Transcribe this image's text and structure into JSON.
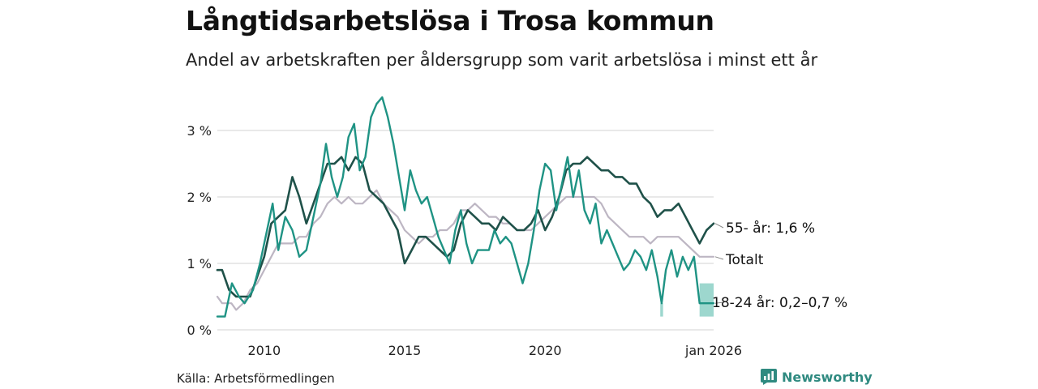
{
  "header": {
    "title": "Långtidsarbetslösa i Trosa kommun",
    "subtitle": "Andel av arbetskraften per åldersgrupp som varit arbetslösa i minst ett år"
  },
  "footer": {
    "source": "Källa: Arbetsförmedlingen",
    "brand": "Newsworthy"
  },
  "colors": {
    "total": "#bdb6c3",
    "age55": "#1f5149",
    "age18_24": "#1f9384",
    "band": "#8cd0c5",
    "grid": "#dcdcdc"
  },
  "chart_data": {
    "type": "line",
    "title": "Långtidsarbetslösa i Trosa kommun",
    "subtitle": "Andel av arbetskraften per åldersgrupp som varit arbetslösa i minst ett år",
    "ylabel": "",
    "xlabel": "",
    "ylim": [
      0,
      3.6
    ],
    "xlim": [
      2008.33,
      2026.0
    ],
    "y_ticks": [
      0,
      1,
      2,
      3
    ],
    "y_tick_labels": [
      "0 %",
      "1 %",
      "2 %",
      "3 %"
    ],
    "x_ticks": [
      2010,
      2015,
      2020,
      2026.0
    ],
    "x_tick_labels": [
      "2010",
      "2015",
      "2020",
      "jan 2026"
    ],
    "grid": true,
    "series": [
      {
        "key": "total",
        "name": "Totalt",
        "label": "Totalt",
        "points": [
          [
            2008.33,
            0.5
          ],
          [
            2008.5,
            0.4
          ],
          [
            2008.83,
            0.4
          ],
          [
            2009.0,
            0.3
          ],
          [
            2009.25,
            0.4
          ],
          [
            2009.5,
            0.6
          ],
          [
            2009.75,
            0.7
          ],
          [
            2010.0,
            0.9
          ],
          [
            2010.25,
            1.1
          ],
          [
            2010.5,
            1.3
          ],
          [
            2010.75,
            1.3
          ],
          [
            2011.0,
            1.3
          ],
          [
            2011.25,
            1.4
          ],
          [
            2011.5,
            1.4
          ],
          [
            2011.75,
            1.6
          ],
          [
            2012.0,
            1.7
          ],
          [
            2012.25,
            1.9
          ],
          [
            2012.5,
            2.0
          ],
          [
            2012.75,
            1.9
          ],
          [
            2013.0,
            2.0
          ],
          [
            2013.25,
            1.9
          ],
          [
            2013.5,
            1.9
          ],
          [
            2013.75,
            2.0
          ],
          [
            2014.0,
            2.1
          ],
          [
            2014.25,
            1.9
          ],
          [
            2014.5,
            1.8
          ],
          [
            2014.75,
            1.7
          ],
          [
            2015.0,
            1.5
          ],
          [
            2015.25,
            1.4
          ],
          [
            2015.5,
            1.3
          ],
          [
            2015.75,
            1.4
          ],
          [
            2016.0,
            1.4
          ],
          [
            2016.25,
            1.5
          ],
          [
            2016.5,
            1.5
          ],
          [
            2016.75,
            1.6
          ],
          [
            2017.0,
            1.8
          ],
          [
            2017.25,
            1.8
          ],
          [
            2017.5,
            1.9
          ],
          [
            2017.75,
            1.8
          ],
          [
            2018.0,
            1.7
          ],
          [
            2018.25,
            1.7
          ],
          [
            2018.5,
            1.6
          ],
          [
            2018.75,
            1.6
          ],
          [
            2019.0,
            1.5
          ],
          [
            2019.25,
            1.5
          ],
          [
            2019.5,
            1.5
          ],
          [
            2019.75,
            1.6
          ],
          [
            2020.0,
            1.7
          ],
          [
            2020.25,
            1.8
          ],
          [
            2020.5,
            1.9
          ],
          [
            2020.75,
            2.0
          ],
          [
            2021.0,
            2.0
          ],
          [
            2021.25,
            2.0
          ],
          [
            2021.5,
            2.0
          ],
          [
            2021.75,
            2.0
          ],
          [
            2022.0,
            1.9
          ],
          [
            2022.25,
            1.7
          ],
          [
            2022.5,
            1.6
          ],
          [
            2022.75,
            1.5
          ],
          [
            2023.0,
            1.4
          ],
          [
            2023.25,
            1.4
          ],
          [
            2023.5,
            1.4
          ],
          [
            2023.75,
            1.3
          ],
          [
            2024.0,
            1.4
          ],
          [
            2024.25,
            1.4
          ],
          [
            2024.5,
            1.4
          ],
          [
            2024.75,
            1.4
          ],
          [
            2025.0,
            1.3
          ],
          [
            2025.25,
            1.2
          ],
          [
            2025.5,
            1.1
          ],
          [
            2025.75,
            1.1
          ],
          [
            2026.0,
            1.1
          ]
        ]
      },
      {
        "key": "age55",
        "name": "55- år",
        "label": "55- år: 1,6 %",
        "points": [
          [
            2008.33,
            0.9
          ],
          [
            2008.5,
            0.9
          ],
          [
            2008.75,
            0.6
          ],
          [
            2009.0,
            0.5
          ],
          [
            2009.25,
            0.5
          ],
          [
            2009.5,
            0.5
          ],
          [
            2009.75,
            0.8
          ],
          [
            2010.0,
            1.1
          ],
          [
            2010.25,
            1.6
          ],
          [
            2010.5,
            1.7
          ],
          [
            2010.75,
            1.8
          ],
          [
            2011.0,
            2.3
          ],
          [
            2011.25,
            2.0
          ],
          [
            2011.5,
            1.6
          ],
          [
            2011.75,
            1.9
          ],
          [
            2012.0,
            2.2
          ],
          [
            2012.25,
            2.5
          ],
          [
            2012.5,
            2.5
          ],
          [
            2012.75,
            2.6
          ],
          [
            2013.0,
            2.4
          ],
          [
            2013.25,
            2.6
          ],
          [
            2013.5,
            2.5
          ],
          [
            2013.75,
            2.1
          ],
          [
            2014.0,
            2.0
          ],
          [
            2014.25,
            1.9
          ],
          [
            2014.5,
            1.7
          ],
          [
            2014.75,
            1.5
          ],
          [
            2015.0,
            1.0
          ],
          [
            2015.25,
            1.2
          ],
          [
            2015.5,
            1.4
          ],
          [
            2015.75,
            1.4
          ],
          [
            2016.0,
            1.3
          ],
          [
            2016.25,
            1.2
          ],
          [
            2016.5,
            1.1
          ],
          [
            2016.75,
            1.2
          ],
          [
            2017.0,
            1.6
          ],
          [
            2017.25,
            1.8
          ],
          [
            2017.5,
            1.7
          ],
          [
            2017.75,
            1.6
          ],
          [
            2018.0,
            1.6
          ],
          [
            2018.25,
            1.5
          ],
          [
            2018.5,
            1.7
          ],
          [
            2018.75,
            1.6
          ],
          [
            2019.0,
            1.5
          ],
          [
            2019.25,
            1.5
          ],
          [
            2019.5,
            1.6
          ],
          [
            2019.75,
            1.8
          ],
          [
            2020.0,
            1.5
          ],
          [
            2020.25,
            1.7
          ],
          [
            2020.5,
            2.0
          ],
          [
            2020.75,
            2.4
          ],
          [
            2021.0,
            2.5
          ],
          [
            2021.25,
            2.5
          ],
          [
            2021.5,
            2.6
          ],
          [
            2021.75,
            2.5
          ],
          [
            2022.0,
            2.4
          ],
          [
            2022.25,
            2.4
          ],
          [
            2022.5,
            2.3
          ],
          [
            2022.75,
            2.3
          ],
          [
            2023.0,
            2.2
          ],
          [
            2023.25,
            2.2
          ],
          [
            2023.5,
            2.0
          ],
          [
            2023.75,
            1.9
          ],
          [
            2024.0,
            1.7
          ],
          [
            2024.25,
            1.8
          ],
          [
            2024.5,
            1.8
          ],
          [
            2024.75,
            1.9
          ],
          [
            2025.0,
            1.7
          ],
          [
            2025.25,
            1.5
          ],
          [
            2025.5,
            1.3
          ],
          [
            2025.75,
            1.5
          ],
          [
            2026.0,
            1.6
          ]
        ]
      },
      {
        "key": "age18_24",
        "name": "18-24 år",
        "label": "18-24 år: 0,2–0,7 %",
        "points": [
          [
            2008.33,
            0.2
          ],
          [
            2008.6,
            0.2
          ],
          [
            2008.85,
            0.7
          ],
          [
            2009.1,
            0.5
          ],
          [
            2009.3,
            0.4
          ],
          [
            2009.6,
            0.6
          ],
          [
            2009.85,
            1.0
          ],
          [
            2010.1,
            1.5
          ],
          [
            2010.3,
            1.9
          ],
          [
            2010.5,
            1.2
          ],
          [
            2010.75,
            1.7
          ],
          [
            2011.0,
            1.5
          ],
          [
            2011.25,
            1.1
          ],
          [
            2011.5,
            1.2
          ],
          [
            2011.75,
            1.7
          ],
          [
            2012.0,
            2.2
          ],
          [
            2012.2,
            2.8
          ],
          [
            2012.4,
            2.3
          ],
          [
            2012.6,
            2.0
          ],
          [
            2012.8,
            2.3
          ],
          [
            2013.0,
            2.9
          ],
          [
            2013.2,
            3.1
          ],
          [
            2013.4,
            2.4
          ],
          [
            2013.6,
            2.6
          ],
          [
            2013.8,
            3.2
          ],
          [
            2014.0,
            3.4
          ],
          [
            2014.2,
            3.5
          ],
          [
            2014.4,
            3.2
          ],
          [
            2014.6,
            2.8
          ],
          [
            2014.8,
            2.3
          ],
          [
            2015.0,
            1.8
          ],
          [
            2015.2,
            2.4
          ],
          [
            2015.4,
            2.1
          ],
          [
            2015.6,
            1.9
          ],
          [
            2015.8,
            2.0
          ],
          [
            2016.0,
            1.7
          ],
          [
            2016.2,
            1.4
          ],
          [
            2016.4,
            1.2
          ],
          [
            2016.6,
            1.0
          ],
          [
            2016.8,
            1.5
          ],
          [
            2017.0,
            1.8
          ],
          [
            2017.2,
            1.3
          ],
          [
            2017.4,
            1.0
          ],
          [
            2017.6,
            1.2
          ],
          [
            2017.8,
            1.2
          ],
          [
            2018.0,
            1.2
          ],
          [
            2018.2,
            1.5
          ],
          [
            2018.4,
            1.3
          ],
          [
            2018.6,
            1.4
          ],
          [
            2018.8,
            1.3
          ],
          [
            2019.0,
            1.0
          ],
          [
            2019.2,
            0.7
          ],
          [
            2019.4,
            1.0
          ],
          [
            2019.6,
            1.5
          ],
          [
            2019.8,
            2.1
          ],
          [
            2020.0,
            2.5
          ],
          [
            2020.2,
            2.4
          ],
          [
            2020.4,
            1.8
          ],
          [
            2020.6,
            2.2
          ],
          [
            2020.8,
            2.6
          ],
          [
            2021.0,
            2.0
          ],
          [
            2021.2,
            2.4
          ],
          [
            2021.4,
            1.8
          ],
          [
            2021.6,
            1.6
          ],
          [
            2021.8,
            1.9
          ],
          [
            2022.0,
            1.3
          ],
          [
            2022.2,
            1.5
          ],
          [
            2022.4,
            1.3
          ],
          [
            2022.6,
            1.1
          ],
          [
            2022.8,
            0.9
          ],
          [
            2023.0,
            1.0
          ],
          [
            2023.2,
            1.2
          ],
          [
            2023.4,
            1.1
          ],
          [
            2023.6,
            0.9
          ],
          [
            2023.8,
            1.2
          ],
          [
            2024.0,
            0.8
          ],
          [
            2024.15,
            0.4
          ],
          [
            2024.3,
            0.9
          ],
          [
            2024.5,
            1.2
          ],
          [
            2024.7,
            0.8
          ],
          [
            2024.9,
            1.1
          ],
          [
            2025.1,
            0.9
          ],
          [
            2025.3,
            1.1
          ],
          [
            2025.5,
            0.4
          ],
          [
            2025.75,
            0.4
          ],
          [
            2026.0,
            0.4
          ]
        ]
      }
    ],
    "ranges": [
      {
        "series": "18-24 år",
        "from": 2025.5,
        "to": 2026.0,
        "low": 0.2,
        "high": 0.7
      },
      {
        "series": "18-24 år",
        "from": 2024.1,
        "to": 2024.2,
        "low": 0.2,
        "high": 0.4
      }
    ]
  }
}
